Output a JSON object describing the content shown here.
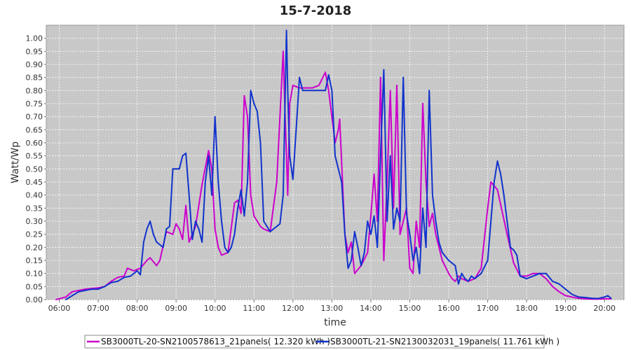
{
  "chart_data": {
    "type": "line",
    "title": "15-7-2018",
    "xlabel": "time",
    "ylabel": "Watt/Wp",
    "xlim": [
      "05:40",
      "20:30"
    ],
    "ylim": [
      0,
      1.05
    ],
    "grid": true,
    "legend_position": "bottom",
    "x_ticks": [
      "06:00",
      "07:00",
      "08:00",
      "09:00",
      "10:00",
      "11:00",
      "12:00",
      "13:00",
      "14:00",
      "15:00",
      "16:00",
      "17:00",
      "18:00",
      "19:00",
      "20:00"
    ],
    "y_ticks": [
      "0.00",
      "0.05",
      "0.10",
      "0.15",
      "0.20",
      "0.25",
      "0.30",
      "0.35",
      "0.40",
      "0.45",
      "0.50",
      "0.55",
      "0.60",
      "0.65",
      "0.70",
      "0.75",
      "0.80",
      "0.85",
      "0.90",
      "0.95",
      "1.00"
    ],
    "series": [
      {
        "name": "SB3000TL-20-SN2100578613_21panels( 12.320 kWh )",
        "color": "#cc00cc",
        "points": [
          [
            "05:55",
            0.0
          ],
          [
            "06:10",
            0.01
          ],
          [
            "06:20",
            0.03
          ],
          [
            "06:40",
            0.04
          ],
          [
            "07:00",
            0.045
          ],
          [
            "07:10",
            0.05
          ],
          [
            "07:20",
            0.07
          ],
          [
            "07:30",
            0.085
          ],
          [
            "07:40",
            0.09
          ],
          [
            "07:45",
            0.12
          ],
          [
            "07:55",
            0.11
          ],
          [
            "08:05",
            0.12
          ],
          [
            "08:15",
            0.15
          ],
          [
            "08:20",
            0.16
          ],
          [
            "08:30",
            0.13
          ],
          [
            "08:35",
            0.15
          ],
          [
            "08:45",
            0.26
          ],
          [
            "08:55",
            0.25
          ],
          [
            "09:00",
            0.29
          ],
          [
            "09:05",
            0.27
          ],
          [
            "09:10",
            0.23
          ],
          [
            "09:15",
            0.36
          ],
          [
            "09:20",
            0.22
          ],
          [
            "09:25",
            0.25
          ],
          [
            "09:30",
            0.28
          ],
          [
            "09:40",
            0.44
          ],
          [
            "09:50",
            0.57
          ],
          [
            "09:55",
            0.5
          ],
          [
            "10:00",
            0.27
          ],
          [
            "10:05",
            0.2
          ],
          [
            "10:10",
            0.17
          ],
          [
            "10:20",
            0.18
          ],
          [
            "10:30",
            0.37
          ],
          [
            "10:35",
            0.38
          ],
          [
            "10:40",
            0.33
          ],
          [
            "10:45",
            0.78
          ],
          [
            "10:50",
            0.7
          ],
          [
            "10:55",
            0.4
          ],
          [
            "11:00",
            0.32
          ],
          [
            "11:10",
            0.28
          ],
          [
            "11:15",
            0.27
          ],
          [
            "11:25",
            0.26
          ],
          [
            "11:35",
            0.45
          ],
          [
            "11:45",
            0.95
          ],
          [
            "11:48",
            0.7
          ],
          [
            "11:52",
            0.4
          ],
          [
            "11:55",
            0.75
          ],
          [
            "12:00",
            0.82
          ],
          [
            "12:10",
            0.81
          ],
          [
            "12:20",
            0.81
          ],
          [
            "12:30",
            0.81
          ],
          [
            "12:40",
            0.82
          ],
          [
            "12:50",
            0.87
          ],
          [
            "12:55",
            0.8
          ],
          [
            "13:05",
            0.6
          ],
          [
            "13:10",
            0.65
          ],
          [
            "13:12",
            0.69
          ],
          [
            "13:20",
            0.25
          ],
          [
            "13:25",
            0.18
          ],
          [
            "13:30",
            0.22
          ],
          [
            "13:35",
            0.1
          ],
          [
            "13:45",
            0.13
          ],
          [
            "13:55",
            0.18
          ],
          [
            "14:00",
            0.32
          ],
          [
            "14:05",
            0.48
          ],
          [
            "14:10",
            0.3
          ],
          [
            "14:15",
            0.85
          ],
          [
            "14:20",
            0.15
          ],
          [
            "14:25",
            0.45
          ],
          [
            "14:30",
            0.8
          ],
          [
            "14:35",
            0.35
          ],
          [
            "14:40",
            0.82
          ],
          [
            "14:45",
            0.25
          ],
          [
            "14:55",
            0.35
          ],
          [
            "15:00",
            0.12
          ],
          [
            "15:05",
            0.1
          ],
          [
            "15:10",
            0.3
          ],
          [
            "15:15",
            0.2
          ],
          [
            "15:20",
            0.75
          ],
          [
            "15:25",
            0.45
          ],
          [
            "15:30",
            0.28
          ],
          [
            "15:35",
            0.33
          ],
          [
            "15:40",
            0.25
          ],
          [
            "15:50",
            0.15
          ],
          [
            "16:00",
            0.1
          ],
          [
            "16:05",
            0.08
          ],
          [
            "16:10",
            0.07
          ],
          [
            "16:15",
            0.09
          ],
          [
            "16:20",
            0.08
          ],
          [
            "16:30",
            0.07
          ],
          [
            "16:40",
            0.08
          ],
          [
            "16:50",
            0.12
          ],
          [
            "17:00",
            0.35
          ],
          [
            "17:05",
            0.45
          ],
          [
            "17:15",
            0.42
          ],
          [
            "17:30",
            0.25
          ],
          [
            "17:40",
            0.14
          ],
          [
            "17:50",
            0.09
          ],
          [
            "18:00",
            0.09
          ],
          [
            "18:10",
            0.1
          ],
          [
            "18:20",
            0.1
          ],
          [
            "18:30",
            0.08
          ],
          [
            "18:40",
            0.05
          ],
          [
            "18:50",
            0.03
          ],
          [
            "19:00",
            0.015
          ],
          [
            "19:10",
            0.01
          ],
          [
            "19:20",
            0.005
          ],
          [
            "19:30",
            0.003
          ],
          [
            "19:40",
            0.002
          ],
          [
            "19:50",
            0.002
          ],
          [
            "20:00",
            0.003
          ],
          [
            "20:10",
            0.003
          ]
        ]
      },
      {
        "name": "SB3000TL-21-SN2130032031_19panels( 11.761 kWh )",
        "color": "#1133cc",
        "points": [
          [
            "06:10",
            0.0
          ],
          [
            "06:20",
            0.015
          ],
          [
            "06:30",
            0.03
          ],
          [
            "06:40",
            0.035
          ],
          [
            "06:50",
            0.04
          ],
          [
            "07:00",
            0.04
          ],
          [
            "07:10",
            0.05
          ],
          [
            "07:20",
            0.065
          ],
          [
            "07:30",
            0.07
          ],
          [
            "07:40",
            0.085
          ],
          [
            "07:50",
            0.09
          ],
          [
            "08:00",
            0.11
          ],
          [
            "08:05",
            0.095
          ],
          [
            "08:10",
            0.22
          ],
          [
            "08:15",
            0.27
          ],
          [
            "08:20",
            0.3
          ],
          [
            "08:25",
            0.25
          ],
          [
            "08:30",
            0.22
          ],
          [
            "08:40",
            0.2
          ],
          [
            "08:45",
            0.27
          ],
          [
            "08:50",
            0.28
          ],
          [
            "08:55",
            0.5
          ],
          [
            "09:00",
            0.5
          ],
          [
            "09:05",
            0.5
          ],
          [
            "09:10",
            0.55
          ],
          [
            "09:15",
            0.56
          ],
          [
            "09:20",
            0.4
          ],
          [
            "09:25",
            0.23
          ],
          [
            "09:30",
            0.3
          ],
          [
            "09:35",
            0.27
          ],
          [
            "09:40",
            0.22
          ],
          [
            "09:45",
            0.45
          ],
          [
            "09:50",
            0.55
          ],
          [
            "09:55",
            0.4
          ],
          [
            "10:00",
            0.7
          ],
          [
            "10:05",
            0.45
          ],
          [
            "10:10",
            0.3
          ],
          [
            "10:15",
            0.2
          ],
          [
            "10:20",
            0.18
          ],
          [
            "10:25",
            0.2
          ],
          [
            "10:30",
            0.25
          ],
          [
            "10:35",
            0.35
          ],
          [
            "10:40",
            0.42
          ],
          [
            "10:45",
            0.32
          ],
          [
            "10:50",
            0.45
          ],
          [
            "10:55",
            0.8
          ],
          [
            "11:00",
            0.75
          ],
          [
            "11:05",
            0.72
          ],
          [
            "11:10",
            0.6
          ],
          [
            "11:15",
            0.3
          ],
          [
            "11:20",
            0.28
          ],
          [
            "11:25",
            0.26
          ],
          [
            "11:30",
            0.27
          ],
          [
            "11:35",
            0.28
          ],
          [
            "11:40",
            0.29
          ],
          [
            "11:45",
            0.4
          ],
          [
            "11:50",
            1.03
          ],
          [
            "11:52",
            0.8
          ],
          [
            "11:55",
            0.55
          ],
          [
            "12:00",
            0.46
          ],
          [
            "12:05",
            0.65
          ],
          [
            "12:10",
            0.85
          ],
          [
            "12:15",
            0.8
          ],
          [
            "12:20",
            0.8
          ],
          [
            "12:30",
            0.8
          ],
          [
            "12:40",
            0.8
          ],
          [
            "12:50",
            0.8
          ],
          [
            "12:55",
            0.86
          ],
          [
            "13:00",
            0.8
          ],
          [
            "13:05",
            0.55
          ],
          [
            "13:10",
            0.5
          ],
          [
            "13:15",
            0.45
          ],
          [
            "13:20",
            0.25
          ],
          [
            "13:25",
            0.12
          ],
          [
            "13:30",
            0.15
          ],
          [
            "13:35",
            0.26
          ],
          [
            "13:40",
            0.2
          ],
          [
            "13:45",
            0.13
          ],
          [
            "13:50",
            0.18
          ],
          [
            "13:55",
            0.3
          ],
          [
            "14:00",
            0.25
          ],
          [
            "14:05",
            0.32
          ],
          [
            "14:10",
            0.2
          ],
          [
            "14:15",
            0.55
          ],
          [
            "14:20",
            0.88
          ],
          [
            "14:25",
            0.3
          ],
          [
            "14:30",
            0.55
          ],
          [
            "14:35",
            0.27
          ],
          [
            "14:40",
            0.35
          ],
          [
            "14:45",
            0.3
          ],
          [
            "14:50",
            0.85
          ],
          [
            "14:55",
            0.33
          ],
          [
            "15:00",
            0.25
          ],
          [
            "15:05",
            0.15
          ],
          [
            "15:10",
            0.2
          ],
          [
            "15:15",
            0.1
          ],
          [
            "15:20",
            0.35
          ],
          [
            "15:25",
            0.2
          ],
          [
            "15:30",
            0.8
          ],
          [
            "15:35",
            0.4
          ],
          [
            "15:40",
            0.3
          ],
          [
            "15:45",
            0.22
          ],
          [
            "15:50",
            0.18
          ],
          [
            "16:00",
            0.15
          ],
          [
            "16:10",
            0.13
          ],
          [
            "16:15",
            0.06
          ],
          [
            "16:20",
            0.1
          ],
          [
            "16:25",
            0.08
          ],
          [
            "16:30",
            0.07
          ],
          [
            "16:35",
            0.09
          ],
          [
            "16:40",
            0.08
          ],
          [
            "16:50",
            0.1
          ],
          [
            "17:00",
            0.15
          ],
          [
            "17:05",
            0.3
          ],
          [
            "17:10",
            0.45
          ],
          [
            "17:15",
            0.53
          ],
          [
            "17:20",
            0.48
          ],
          [
            "17:25",
            0.4
          ],
          [
            "17:30",
            0.3
          ],
          [
            "17:35",
            0.2
          ],
          [
            "17:40",
            0.19
          ],
          [
            "17:45",
            0.17
          ],
          [
            "17:50",
            0.09
          ],
          [
            "18:00",
            0.08
          ],
          [
            "18:10",
            0.09
          ],
          [
            "18:20",
            0.1
          ],
          [
            "18:30",
            0.1
          ],
          [
            "18:40",
            0.07
          ],
          [
            "18:50",
            0.06
          ],
          [
            "19:00",
            0.04
          ],
          [
            "19:10",
            0.02
          ],
          [
            "19:20",
            0.01
          ],
          [
            "19:30",
            0.008
          ],
          [
            "19:40",
            0.005
          ],
          [
            "19:50",
            0.004
          ],
          [
            "20:00",
            0.01
          ],
          [
            "20:05",
            0.015
          ],
          [
            "20:10",
            0.005
          ]
        ]
      }
    ]
  }
}
